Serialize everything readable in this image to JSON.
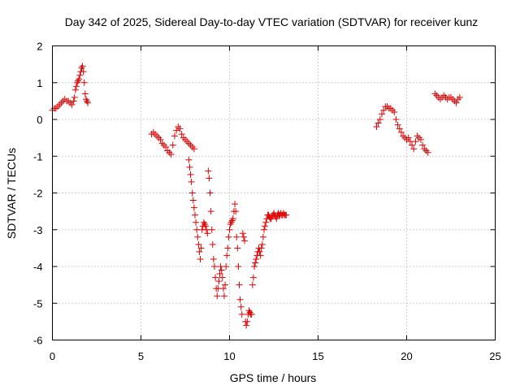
{
  "chart_data": {
    "type": "scatter",
    "title": "Day 342 of 2025, Sidereal Day-to-day VTEC variation (SDTVAR) for receiver kunz",
    "xlabel": "GPS time / hours",
    "ylabel": "SDTVAR / TECUs",
    "xlim": [
      0,
      25
    ],
    "ylim": [
      -6,
      2
    ],
    "xticks": [
      "0",
      "5",
      "10",
      "15",
      "20",
      "25"
    ],
    "yticks": [
      "2",
      "1",
      "0",
      "-1",
      "-2",
      "-3",
      "-4",
      "-5",
      "-6"
    ],
    "grid": true,
    "legend": "none",
    "marker": "plus",
    "color": "#e00000",
    "series": [
      {
        "x": [
          0.0,
          0.1,
          0.2,
          0.3,
          0.4,
          0.5,
          0.6,
          0.7,
          0.8,
          0.9,
          1.0,
          1.1,
          1.2,
          1.25,
          1.3,
          1.35,
          1.4,
          1.45,
          1.5,
          1.55,
          1.6,
          1.65,
          1.7,
          1.75,
          1.8,
          1.85,
          1.9,
          1.95,
          2.0
        ],
        "y": [
          0.25,
          0.3,
          0.3,
          0.35,
          0.4,
          0.45,
          0.5,
          0.55,
          0.5,
          0.5,
          0.45,
          0.4,
          0.5,
          0.6,
          0.8,
          0.9,
          1.0,
          1.05,
          1.1,
          1.2,
          1.3,
          1.4,
          1.45,
          1.3,
          1.0,
          0.7,
          0.55,
          0.5,
          0.45
        ]
      },
      {
        "x": [
          5.6,
          5.7,
          5.8,
          5.9,
          6.0,
          6.1,
          6.2,
          6.3,
          6.4,
          6.5,
          6.6,
          6.7,
          6.8,
          6.9,
          7.0,
          7.1,
          7.2,
          7.3,
          7.4,
          7.5,
          7.6,
          7.7,
          7.8,
          7.9,
          8.0
        ],
        "y": [
          -0.4,
          -0.35,
          -0.4,
          -0.45,
          -0.5,
          -0.55,
          -0.65,
          -0.7,
          -0.75,
          -0.85,
          -0.9,
          -0.95,
          -0.7,
          -0.45,
          -0.3,
          -0.2,
          -0.25,
          -0.4,
          -0.5,
          -0.55,
          -0.6,
          -0.65,
          -0.7,
          -0.75,
          -0.8
        ]
      },
      {
        "x": [
          7.7,
          7.75,
          7.8,
          7.85,
          7.9,
          7.95,
          8.0,
          8.05,
          8.1,
          8.15,
          8.2,
          8.25,
          8.3,
          8.35,
          8.4,
          8.45,
          8.5,
          8.55,
          8.6,
          8.65,
          8.7,
          8.75,
          8.8,
          8.85,
          8.9,
          8.95,
          9.0,
          9.05,
          9.1,
          9.15,
          9.2,
          9.25,
          9.3,
          9.35,
          9.4,
          9.45,
          9.5,
          9.55,
          9.6,
          9.65,
          9.7,
          9.75,
          9.8,
          9.85,
          9.9,
          9.95,
          10.0,
          10.05,
          10.1,
          10.15,
          10.2,
          10.25,
          10.3,
          10.35,
          10.4,
          10.45,
          10.5,
          10.55,
          10.6,
          10.65,
          10.7,
          10.75,
          10.8,
          10.85,
          10.9,
          10.95,
          11.0,
          11.05,
          11.1,
          11.15,
          11.2,
          11.25,
          11.3,
          11.35,
          11.4,
          11.45,
          11.5,
          11.55,
          11.6,
          11.65,
          11.7,
          11.75,
          11.8,
          11.85,
          11.9,
          11.95,
          12.0,
          12.05,
          12.1,
          12.15,
          12.2,
          12.25,
          12.3,
          12.35,
          12.4,
          12.45,
          12.5,
          12.55,
          12.6,
          12.65,
          12.7,
          12.75,
          12.8,
          12.85,
          12.9,
          12.95,
          13.0,
          13.05,
          13.1,
          13.15,
          13.2
        ],
        "y": [
          -1.1,
          -1.3,
          -1.5,
          -1.7,
          -2.0,
          -2.2,
          -2.4,
          -2.6,
          -2.8,
          -3.0,
          -3.2,
          -3.4,
          -3.6,
          -3.8,
          -3.5,
          -3.0,
          -2.9,
          -2.8,
          -2.85,
          -2.9,
          -3.0,
          -3.1,
          -1.4,
          -1.6,
          -2.0,
          -2.5,
          -3.0,
          -3.4,
          -3.8,
          -4.0,
          -4.3,
          -4.6,
          -4.8,
          -4.6,
          -4.4,
          -4.2,
          -4.0,
          -4.1,
          -4.3,
          -4.6,
          -4.8,
          -4.5,
          -4.0,
          -3.7,
          -3.5,
          -3.2,
          -3.0,
          -2.85,
          -2.8,
          -2.75,
          -2.7,
          -2.5,
          -2.3,
          -2.5,
          -3.2,
          -3.5,
          -4.0,
          -4.5,
          -4.9,
          -5.1,
          -5.3,
          -3.1,
          -3.2,
          -3.3,
          -5.5,
          -5.6,
          -5.5,
          -5.3,
          -5.2,
          -5.25,
          -5.3,
          -5.3,
          -4.5,
          -4.3,
          -4.0,
          -3.9,
          -3.8,
          -3.7,
          -3.6,
          -3.5,
          -3.6,
          -3.7,
          -3.5,
          -3.4,
          -3.2,
          -3.0,
          -2.9,
          -2.8,
          -2.7,
          -2.6,
          -2.6,
          -2.65,
          -2.7,
          -2.7,
          -2.65,
          -2.6,
          -2.55,
          -2.6,
          -2.65,
          -2.7,
          -2.6,
          -2.55,
          -2.6,
          -2.6,
          -2.55,
          -2.6,
          -2.6,
          -2.55,
          -2.6,
          -2.6,
          -2.6
        ]
      },
      {
        "x": [
          18.3,
          18.4,
          18.5,
          18.6,
          18.7,
          18.8,
          18.9,
          19.0,
          19.1,
          19.2,
          19.3,
          19.4,
          19.5,
          19.6,
          19.7,
          19.8,
          19.9,
          20.0,
          20.1,
          20.2,
          20.3,
          20.4,
          20.5,
          20.6,
          20.7,
          20.8,
          20.9,
          21.0,
          21.1,
          21.2
        ],
        "y": [
          -0.2,
          -0.1,
          0.0,
          0.15,
          0.25,
          0.35,
          0.35,
          0.3,
          0.3,
          0.25,
          0.2,
          0.0,
          -0.15,
          -0.25,
          -0.35,
          -0.45,
          -0.5,
          -0.55,
          -0.5,
          -0.6,
          -0.7,
          -0.8,
          -0.6,
          -0.45,
          -0.5,
          -0.55,
          -0.7,
          -0.8,
          -0.85,
          -0.9
        ]
      },
      {
        "x": [
          21.6,
          21.7,
          21.8,
          21.9,
          22.0,
          22.1,
          22.2,
          22.3,
          22.4,
          22.5,
          22.6,
          22.7,
          22.8,
          22.9,
          23.0
        ],
        "y": [
          0.7,
          0.65,
          0.6,
          0.55,
          0.6,
          0.65,
          0.6,
          0.55,
          0.6,
          0.6,
          0.55,
          0.5,
          0.45,
          0.55,
          0.6
        ]
      }
    ]
  }
}
